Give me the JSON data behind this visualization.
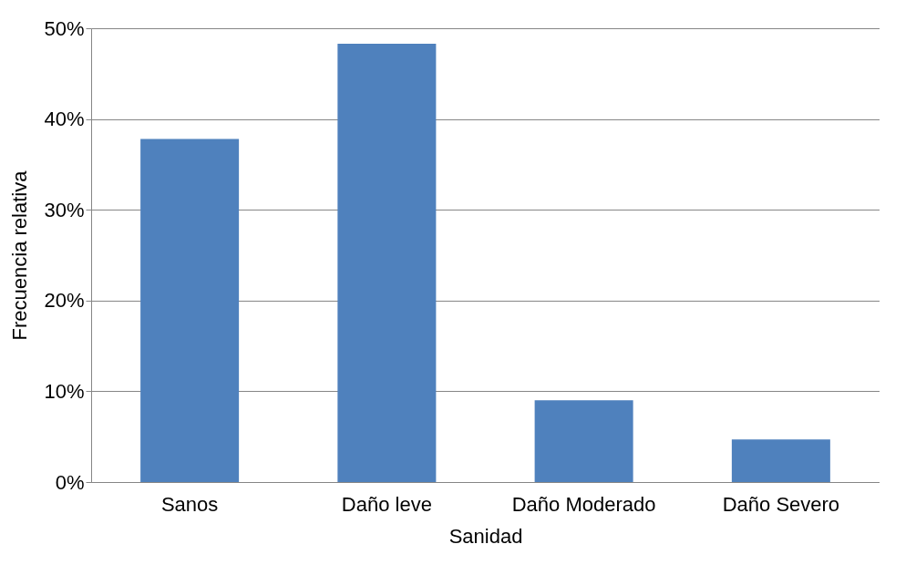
{
  "chart_data": {
    "type": "bar",
    "xlabel": "Sanidad",
    "ylabel": "Frecuencia relativa",
    "categories": [
      "Sanos",
      "Daño leve",
      "Daño Moderado",
      "Daño Severo"
    ],
    "values": [
      37.8,
      48.3,
      9.0,
      4.7
    ],
    "color": "#4f81bd",
    "ylim": [
      0,
      50
    ],
    "yticks": [
      {
        "value": 0,
        "label": "0%"
      },
      {
        "value": 10,
        "label": "10%"
      },
      {
        "value": 20,
        "label": "20%"
      },
      {
        "value": 30,
        "label": "30%"
      },
      {
        "value": 40,
        "label": "40%"
      },
      {
        "value": 50,
        "label": "50%"
      }
    ],
    "grid": "y"
  }
}
